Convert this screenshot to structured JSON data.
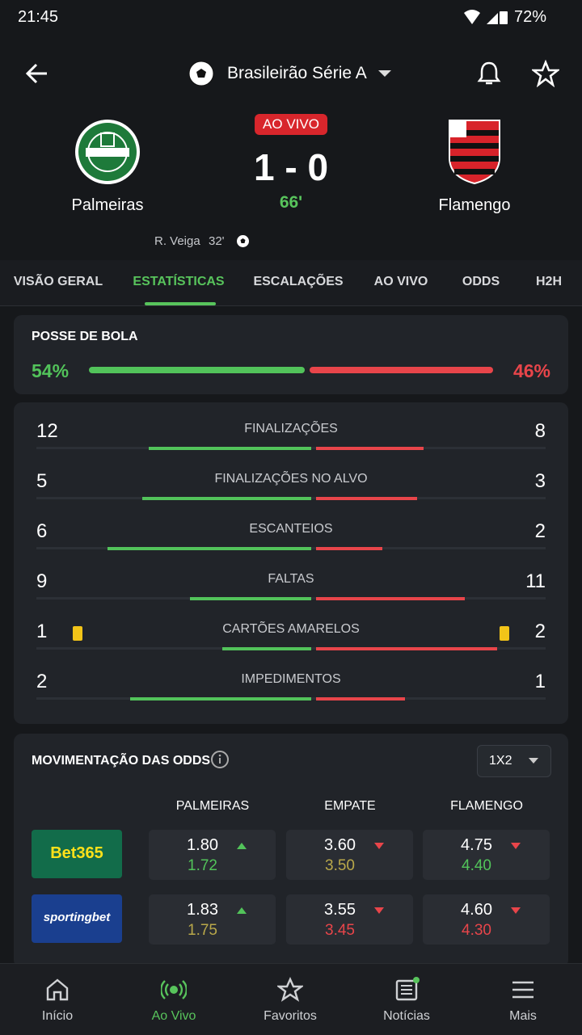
{
  "status_bar": {
    "time": "21:45",
    "battery": "72%"
  },
  "header": {
    "league": "Brasileirão Série A"
  },
  "match": {
    "status": "AO VIVO",
    "home": "Palmeiras",
    "away": "Flamengo",
    "score": "1 - 0",
    "minute": "66'",
    "scorer": "R. Veiga",
    "scorer_minute": "32'"
  },
  "tabs": [
    "VISÃO GERAL",
    "ESTATÍSTICAS",
    "ESCALAÇÕES",
    "AO VIVO",
    "ODDS",
    "H2H"
  ],
  "possession": {
    "title": "POSSE DE BOLA",
    "values": [
      54,
      46
    ],
    "value_labels": [
      "54%",
      "46%"
    ]
  },
  "stats": [
    {
      "label": "FINALIZAÇÕES",
      "home": 12,
      "away": 8
    },
    {
      "label": "FINALIZAÇÕES NO ALVO",
      "home": 5,
      "away": 3
    },
    {
      "label": "ESCANTEIOS",
      "home": 6,
      "away": 2
    },
    {
      "label": "FALTAS",
      "home": 9,
      "away": 11
    },
    {
      "label": "CARTÕES AMARELOS",
      "home": 1,
      "away": 2
    },
    {
      "label": "IMPEDIMENTOS",
      "home": 2,
      "away": 1
    }
  ],
  "odds": {
    "title": "MOVIMENTAÇÃO DAS ODDS",
    "market": "1X2",
    "columns": [
      "PALMEIRAS",
      "EMPATE",
      "FLAMENGO"
    ],
    "rows": [
      {
        "bookmaker": "Bet365",
        "cells": [
          {
            "current": "1.80",
            "trend": "up",
            "previous": "1.72",
            "previous_color": "#52c35a"
          },
          {
            "current": "3.60",
            "trend": "down",
            "previous": "3.50",
            "previous_color": "#b9a84a"
          },
          {
            "current": "4.75",
            "trend": "down",
            "previous": "4.40",
            "previous_color": "#52c35a"
          }
        ]
      },
      {
        "bookmaker": "sportingbet",
        "cells": [
          {
            "current": "1.83",
            "trend": "up",
            "previous": "1.75",
            "previous_color": "#b9a84a"
          },
          {
            "current": "3.55",
            "trend": "down",
            "previous": "3.45",
            "previous_color": "#e8454a"
          },
          {
            "current": "4.60",
            "trend": "down",
            "previous": "4.30",
            "previous_color": "#e8454a"
          }
        ]
      }
    ]
  },
  "nav": [
    "Início",
    "Ao Vivo",
    "Favoritos",
    "Notícias",
    "Mais"
  ]
}
